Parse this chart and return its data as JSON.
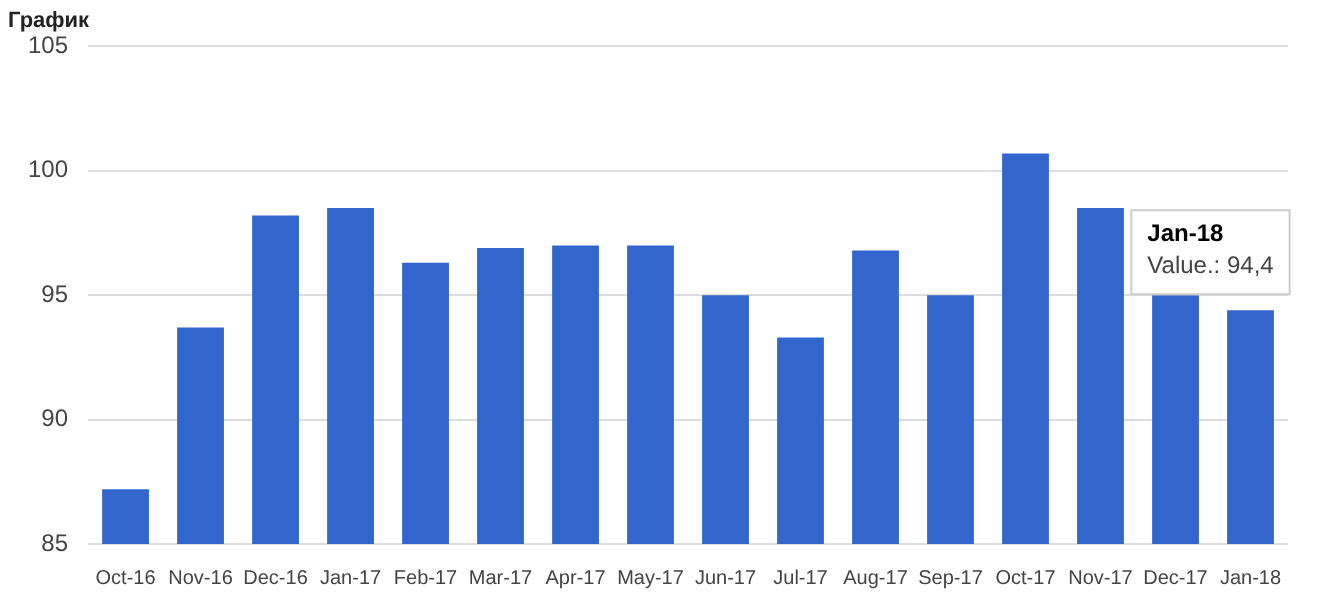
{
  "chart_data": {
    "type": "bar",
    "title": "График",
    "categories": [
      "Oct-16",
      "Nov-16",
      "Dec-16",
      "Jan-17",
      "Feb-17",
      "Mar-17",
      "Apr-17",
      "May-17",
      "Jun-17",
      "Jul-17",
      "Aug-17",
      "Sep-17",
      "Oct-17",
      "Nov-17",
      "Dec-17",
      "Jan-18"
    ],
    "values": [
      87.2,
      93.7,
      98.2,
      98.5,
      96.3,
      96.9,
      97.0,
      97.0,
      95.0,
      93.3,
      96.8,
      95.0,
      100.7,
      98.5,
      95.0,
      94.4
    ],
    "color": "#3366cc",
    "ylim": [
      85,
      105
    ],
    "yticks": [
      85,
      90,
      95,
      100,
      105
    ],
    "grid": "y",
    "annotations": [
      {
        "text": "Jan-18\nValue.: 94,4",
        "x": "Jan-18",
        "y": 94.4
      }
    ]
  }
}
